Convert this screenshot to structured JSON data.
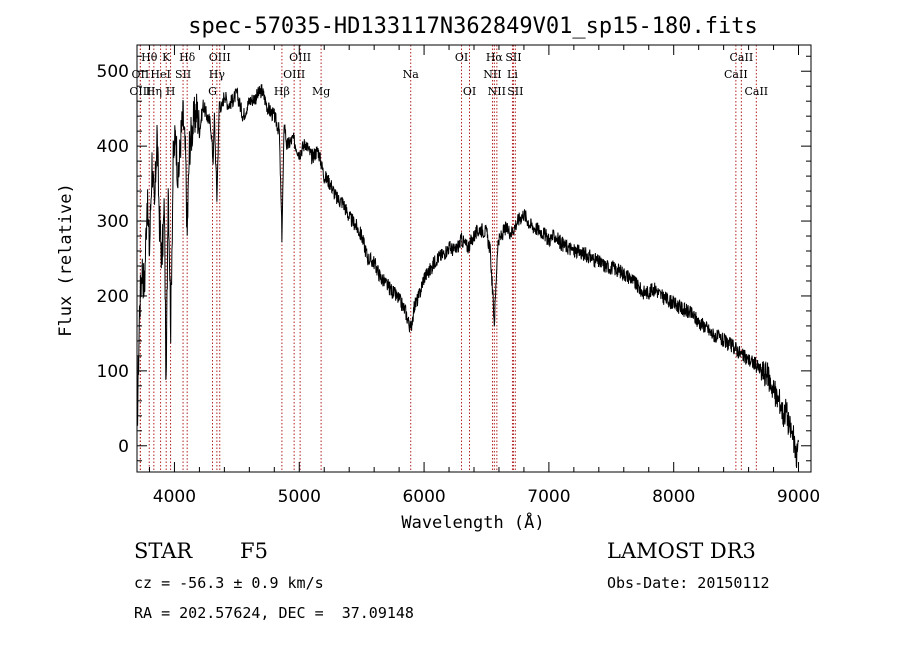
{
  "chart_data": {
    "type": "line",
    "title": "spec-57035-HD133117N362849V01_sp15-180.fits",
    "xlabel": "Wavelength (Å)",
    "ylabel": "Flux (relative)",
    "xlim": [
      3700,
      9100
    ],
    "ylim": [
      -35,
      535
    ],
    "xticks": [
      4000,
      5000,
      6000,
      7000,
      8000,
      9000
    ],
    "yticks": [
      0,
      100,
      200,
      300,
      400,
      500
    ],
    "line_color": "#000000",
    "marker_color": "#b22222",
    "spectrum": {
      "x": [
        3700,
        3720,
        3740,
        3760,
        3780,
        3800,
        3820,
        3840,
        3860,
        3880,
        3900,
        3920,
        3933,
        3950,
        3970,
        3990,
        4010,
        4030,
        4050,
        4070,
        4090,
        4102,
        4120,
        4150,
        4180,
        4200,
        4230,
        4260,
        4290,
        4310,
        4320,
        4340,
        4360,
        4380,
        4400,
        4430,
        4460,
        4500,
        4550,
        4600,
        4650,
        4700,
        4750,
        4800,
        4840,
        4861,
        4880,
        4900,
        4950,
        5000,
        5050,
        5100,
        5150,
        5200,
        5250,
        5300,
        5350,
        5400,
        5450,
        5500,
        5550,
        5600,
        5650,
        5700,
        5750,
        5800,
        5850,
        5893,
        5920,
        5960,
        6000,
        6050,
        6100,
        6150,
        6200,
        6250,
        6300,
        6350,
        6400,
        6450,
        6500,
        6530,
        6563,
        6590,
        6620,
        6650,
        6700,
        6750,
        6800,
        6850,
        6900,
        6950,
        7000,
        7050,
        7100,
        7150,
        7200,
        7250,
        7300,
        7350,
        7400,
        7450,
        7500,
        7550,
        7600,
        7650,
        7700,
        7750,
        7800,
        7850,
        7900,
        7950,
        8000,
        8050,
        8100,
        8150,
        8200,
        8250,
        8300,
        8350,
        8400,
        8450,
        8500,
        8550,
        8600,
        8650,
        8700,
        8750,
        8800,
        8820,
        8850,
        8880,
        8900,
        8920,
        8940,
        8960,
        8980,
        9000
      ],
      "y": [
        10,
        180,
        240,
        210,
        330,
        260,
        380,
        310,
        420,
        300,
        250,
        320,
        65,
        360,
        160,
        380,
        420,
        350,
        410,
        440,
        380,
        280,
        400,
        430,
        450,
        420,
        455,
        440,
        430,
        380,
        440,
        330,
        460,
        450,
        470,
        455,
        460,
        470,
        440,
        460,
        465,
        475,
        450,
        440,
        420,
        280,
        435,
        400,
        410,
        390,
        405,
        385,
        395,
        360,
        350,
        330,
        325,
        305,
        295,
        280,
        250,
        245,
        225,
        215,
        205,
        195,
        180,
        155,
        185,
        200,
        225,
        235,
        250,
        255,
        265,
        260,
        275,
        265,
        280,
        290,
        285,
        260,
        165,
        270,
        280,
        290,
        285,
        300,
        310,
        295,
        290,
        285,
        275,
        280,
        270,
        265,
        260,
        258,
        255,
        250,
        245,
        240,
        238,
        235,
        230,
        225,
        215,
        205,
        205,
        210,
        200,
        195,
        190,
        185,
        180,
        175,
        165,
        160,
        150,
        145,
        140,
        135,
        130,
        120,
        115,
        110,
        100,
        95,
        75,
        65,
        60,
        40,
        50,
        30,
        20,
        10,
        -20,
        5
      ]
    },
    "spectral_lines": [
      {
        "label": "Hθ",
        "x": 3798,
        "row": 1
      },
      {
        "label": "OII",
        "x": 3727,
        "row": 2
      },
      {
        "label": "OIII",
        "x": 3727,
        "row": 3
      },
      {
        "label": "Hη",
        "x": 3835,
        "row": 3
      },
      {
        "label": "HeI",
        "x": 3889,
        "row": 2
      },
      {
        "label": "K",
        "x": 3934,
        "row": 1
      },
      {
        "label": "H",
        "x": 3969,
        "row": 3
      },
      {
        "label": "SII",
        "x": 4069,
        "row": 2
      },
      {
        "label": "Hδ",
        "x": 4102,
        "row": 1
      },
      {
        "label": "OIII",
        "x": 4363,
        "row": 1
      },
      {
        "label": "Hγ",
        "x": 4340,
        "row": 2
      },
      {
        "label": "G",
        "x": 4305,
        "row": 3
      },
      {
        "label": "Hβ",
        "x": 4861,
        "row": 3
      },
      {
        "label": "OIII",
        "x": 5007,
        "row": 1
      },
      {
        "label": "OIII",
        "x": 4959,
        "row": 2
      },
      {
        "label": "Mg",
        "x": 5175,
        "row": 3
      },
      {
        "label": "Na",
        "x": 5893,
        "row": 2
      },
      {
        "label": "OI",
        "x": 6300,
        "row": 1
      },
      {
        "label": "OI",
        "x": 6364,
        "row": 3
      },
      {
        "label": "Hα",
        "x": 6563,
        "row": 1
      },
      {
        "label": "NII",
        "x": 6548,
        "row": 2
      },
      {
        "label": "NII",
        "x": 6583,
        "row": 3
      },
      {
        "label": "SII",
        "x": 6716,
        "row": 1
      },
      {
        "label": "Li",
        "x": 6708,
        "row": 2
      },
      {
        "label": "SII",
        "x": 6731,
        "row": 3
      },
      {
        "label": "CaII",
        "x": 8542,
        "row": 1
      },
      {
        "label": "CaII",
        "x": 8498,
        "row": 2
      },
      {
        "label": "CaII",
        "x": 8662,
        "row": 3
      }
    ]
  },
  "info": {
    "object_type": "STAR",
    "subclass": "F5",
    "survey": "LAMOST DR3",
    "redshift": "cz = -56.3 ± 0.9 km/s",
    "obs_date": "Obs-Date: 20150112",
    "coords": "RA = 202.57624, DEC =  37.09148"
  }
}
